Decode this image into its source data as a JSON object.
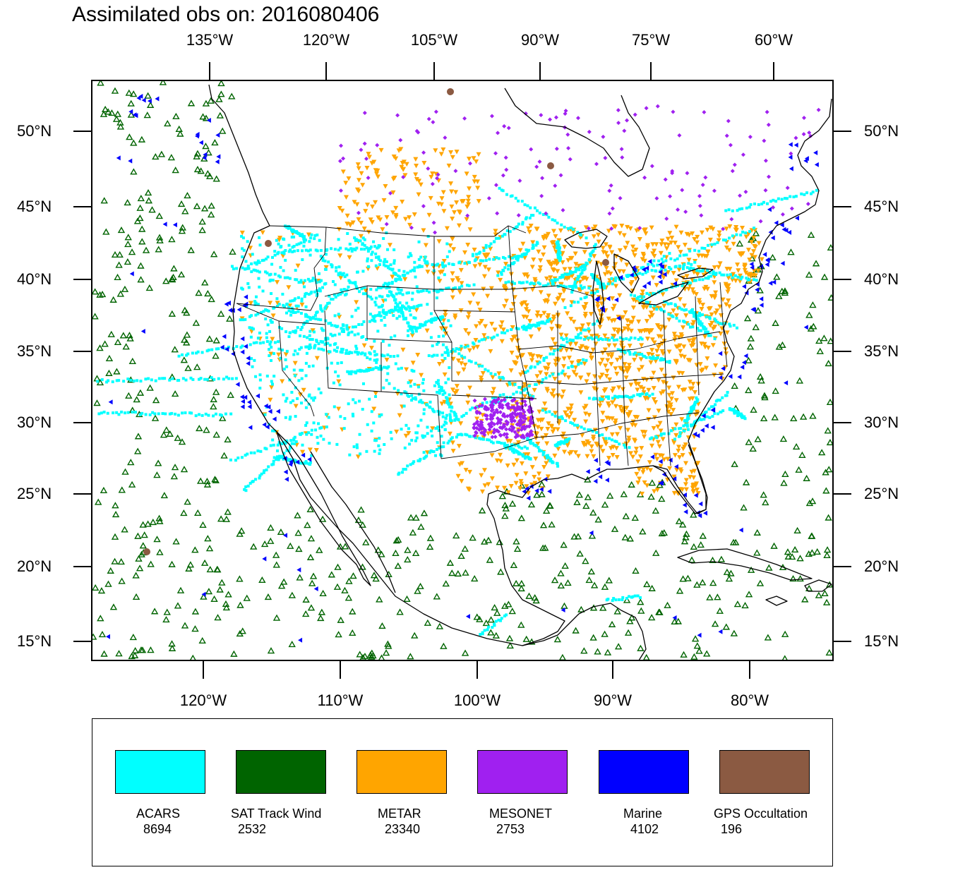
{
  "title": "Assimilated obs on: 2016080406",
  "top_lon_labels": [
    {
      "text": "135°W",
      "deg": -135
    },
    {
      "text": "120°W",
      "deg": -120
    },
    {
      "text": "105°W",
      "deg": -105
    },
    {
      "text": "90°W",
      "deg": -90
    },
    {
      "text": "75°W",
      "deg": -75
    },
    {
      "text": "60°W",
      "deg": -60
    }
  ],
  "bottom_lon_labels": [
    {
      "text": "120°W",
      "deg": -120
    },
    {
      "text": "110°W",
      "deg": -110
    },
    {
      "text": "100°W",
      "deg": -100
    },
    {
      "text": "90°W",
      "deg": -90
    },
    {
      "text": "80°W",
      "deg": -80
    }
  ],
  "lat_labels": [
    {
      "text": "50°N",
      "deg": 50
    },
    {
      "text": "45°N",
      "deg": 45
    },
    {
      "text": "40°N",
      "deg": 40
    },
    {
      "text": "35°N",
      "deg": 35
    },
    {
      "text": "30°N",
      "deg": 30
    },
    {
      "text": "25°N",
      "deg": 25
    },
    {
      "text": "20°N",
      "deg": 20
    },
    {
      "text": "15°N",
      "deg": 15
    }
  ],
  "legend": [
    {
      "name": "ACARS",
      "count": "8694",
      "color": "#00ffff"
    },
    {
      "name": "SAT Track Wind",
      "count": "2532",
      "color": "#006400"
    },
    {
      "name": "METAR",
      "count": "23340",
      "color": "#ffa500"
    },
    {
      "name": "MESONET",
      "count": "2753",
      "color": "#a020f0"
    },
    {
      "name": "Marine",
      "count": "4102",
      "color": "#0000ff"
    },
    {
      "name": "GPS Occultation",
      "count": "196",
      "color": "#8b5a42"
    }
  ],
  "colors": {
    "coastline": "#000000",
    "frame": "#000000",
    "background": "#ffffff"
  }
}
